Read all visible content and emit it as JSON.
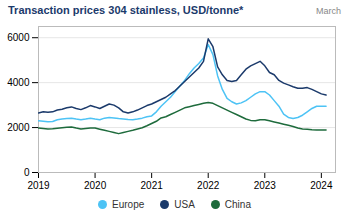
{
  "chart_data": {
    "type": "line",
    "title": "Transaction prices 304 stainless, USD/tonne*",
    "subtitle": "March",
    "x": [
      2019,
      2019.0833333333333,
      2019.1666666666667,
      2019.25,
      2019.3333333333333,
      2019.4166666666667,
      2019.5,
      2019.5833333333333,
      2019.6666666666667,
      2019.75,
      2019.8333333333333,
      2019.9166666666667,
      2020,
      2020.0833333333333,
      2020.1666666666667,
      2020.25,
      2020.3333333333333,
      2020.4166666666667,
      2020.5,
      2020.5833333333333,
      2020.6666666666667,
      2020.75,
      2020.8333333333333,
      2020.9166666666667,
      2021,
      2021.0833333333333,
      2021.1666666666667,
      2021.25,
      2021.3333333333333,
      2021.4166666666667,
      2021.5,
      2021.5833333333333,
      2021.6666666666667,
      2021.75,
      2021.8333333333333,
      2021.9166666666667,
      2022,
      2022.0833333333333,
      2022.1666666666667,
      2022.25,
      2022.3333333333333,
      2022.4166666666667,
      2022.5,
      2022.5833333333333,
      2022.6666666666667,
      2022.75,
      2022.8333333333333,
      2022.9166666666667,
      2023,
      2023.0833333333333,
      2023.1666666666667,
      2023.25,
      2023.3333333333333,
      2023.4166666666667,
      2023.5,
      2023.5833333333333,
      2023.6666666666667,
      2023.75,
      2023.8333333333333,
      2023.9166666666667,
      2024,
      2024.0833333333333
    ],
    "series": [
      {
        "name": "Europe",
        "color": "#4dc3f5",
        "values": [
          2300,
          2280,
          2260,
          2270,
          2350,
          2380,
          2400,
          2420,
          2380,
          2350,
          2380,
          2420,
          2380,
          2350,
          2420,
          2450,
          2430,
          2400,
          2380,
          2360,
          2350,
          2380,
          2420,
          2480,
          2520,
          2700,
          2950,
          3150,
          3350,
          3600,
          3850,
          4100,
          4400,
          4650,
          4850,
          5100,
          5700,
          5250,
          4300,
          3700,
          3300,
          3150,
          3050,
          3100,
          3200,
          3350,
          3500,
          3600,
          3600,
          3450,
          3200,
          2950,
          2600,
          2450,
          2400,
          2450,
          2550,
          2700,
          2850,
          2950,
          2950,
          2950
        ]
      },
      {
        "name": "USA",
        "color": "#1b3a6b",
        "values": [
          2650,
          2700,
          2680,
          2700,
          2780,
          2820,
          2880,
          2920,
          2850,
          2800,
          2880,
          2980,
          2920,
          2850,
          2950,
          3050,
          3000,
          2880,
          2700,
          2650,
          2700,
          2780,
          2880,
          2980,
          3050,
          3150,
          3250,
          3350,
          3500,
          3650,
          3850,
          4050,
          4250,
          4450,
          4650,
          4950,
          5950,
          5600,
          4700,
          4350,
          4100,
          4050,
          4100,
          4350,
          4600,
          4750,
          4850,
          4950,
          4750,
          4450,
          4350,
          4100,
          3980,
          3900,
          3820,
          3750,
          3750,
          3780,
          3700,
          3600,
          3500,
          3450
        ]
      },
      {
        "name": "China",
        "color": "#1e6b3c",
        "values": [
          1980,
          1960,
          1940,
          1950,
          1970,
          1990,
          2010,
          2030,
          1980,
          1940,
          1960,
          1980,
          1980,
          1930,
          1880,
          1830,
          1780,
          1730,
          1780,
          1830,
          1880,
          1940,
          1990,
          2080,
          2180,
          2280,
          2430,
          2480,
          2580,
          2680,
          2780,
          2880,
          2930,
          2980,
          3030,
          3080,
          3120,
          3080,
          2980,
          2880,
          2780,
          2680,
          2580,
          2480,
          2380,
          2320,
          2300,
          2350,
          2350,
          2300,
          2250,
          2200,
          2150,
          2100,
          2050,
          1980,
          1940,
          1930,
          1900,
          1890,
          1890,
          1890
        ]
      }
    ],
    "xlim": [
      2019.0,
      2024.25
    ],
    "xticks": [
      2019,
      2020,
      2021,
      2022,
      2023,
      2024
    ],
    "ylim": [
      0,
      6500
    ],
    "yticks": [
      0,
      2000,
      4000,
      6000
    ],
    "grid": "y",
    "legend": "bottom"
  }
}
